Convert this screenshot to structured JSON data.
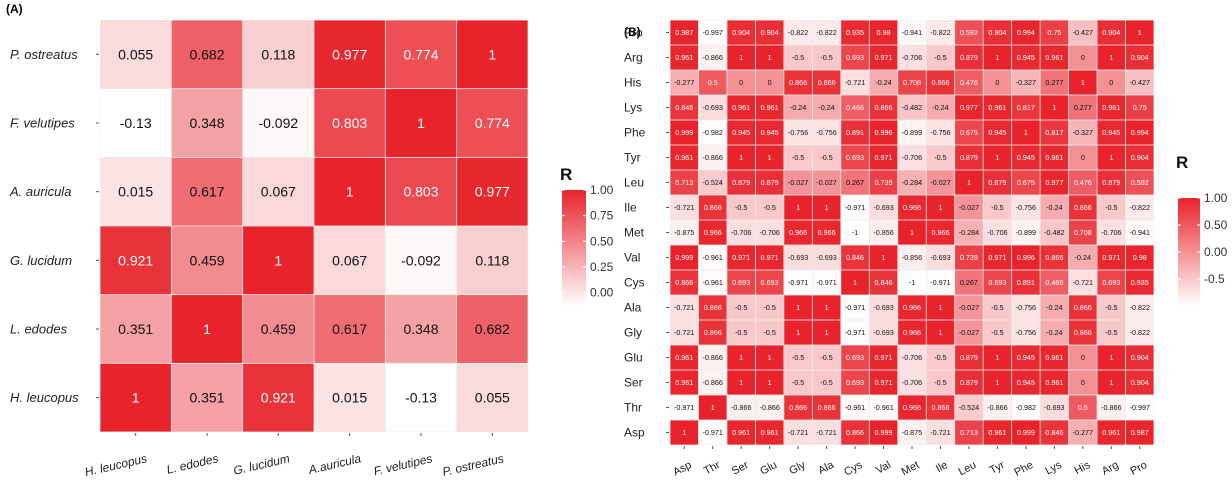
{
  "chart_data": [
    {
      "panel_label": "(A)",
      "type": "heatmap",
      "x_categories": [
        "H. leucopus",
        "L. edodes",
        "G. lucidum",
        "A.auricula",
        "F. velutipes",
        "P. ostreatus"
      ],
      "y_categories": [
        "H. leucopus",
        "L. edodes",
        "G. lucidum",
        "A. auricula",
        "F. velutipes",
        "P. ostreatus"
      ],
      "values": [
        [
          "1",
          "0.351",
          "0.921",
          "0.015",
          "-0.13",
          "0.055"
        ],
        [
          "0.351",
          "1",
          "0.459",
          "0.617",
          "0.348",
          "0.682"
        ],
        [
          "0.921",
          "0.459",
          "1",
          "0.067",
          "-0.092",
          "0.118"
        ],
        [
          "0.015",
          "0.617",
          "0.067",
          "1",
          "0.803",
          "0.977"
        ],
        [
          "-0.13",
          "0.348",
          "-0.092",
          "0.803",
          "1",
          "0.774"
        ],
        [
          "0.055",
          "0.682",
          "0.118",
          "0.977",
          "0.774",
          "1"
        ]
      ],
      "legend": {
        "title": "R",
        "ticks": [
          "1.00",
          "0.75",
          "0.50",
          "0.25",
          "0.00"
        ],
        "range": [
          -0.13,
          1
        ],
        "tick_values": [
          1,
          0.75,
          0.5,
          0.25,
          0
        ]
      },
      "grid": false,
      "legend_placement": "right",
      "colors": {
        "high": "#e8232b",
        "low": "#ffffff",
        "background": "#ebebeb"
      }
    },
    {
      "panel_label": "(B)",
      "type": "heatmap",
      "x_categories": [
        "Asp",
        "Thr",
        "Ser",
        "Glu",
        "Gly",
        "Ala",
        "Cys",
        "Val",
        "Met",
        "Ile",
        "Leu",
        "Tyr",
        "Phe",
        "Lys",
        "His",
        "Arg",
        "Pro"
      ],
      "y_categories": [
        "Asp",
        "Thr",
        "Ser",
        "Glu",
        "Gly",
        "Ala",
        "Cys",
        "Val",
        "Met",
        "Ile",
        "Leu",
        "Tyr",
        "Phe",
        "Lys",
        "His",
        "Arg",
        "Pro"
      ],
      "values": [
        [
          "1",
          "-0.971",
          "0.961",
          "0.961",
          "-0.721",
          "-0.721",
          "0.866",
          "0.999",
          "-0.875",
          "-0.721",
          "0.713",
          "0.961",
          "0.999",
          "0.846",
          "-0.277",
          "0.961",
          "0.987"
        ],
        [
          "-0.971",
          "1",
          "-0.866",
          "-0.866",
          "0.866",
          "0.866",
          "-0.961",
          "-0.961",
          "0.966",
          "0.866",
          "-0.524",
          "-0.866",
          "-0.982",
          "-0.693",
          "0.5",
          "-0.866",
          "-0.997"
        ],
        [
          "0.961",
          "-0.866",
          "1",
          "1",
          "-0.5",
          "-0.5",
          "0.693",
          "0.971",
          "-0.706",
          "-0.5",
          "0.879",
          "1",
          "0.945",
          "0.961",
          "0",
          "1",
          "0.904"
        ],
        [
          "0.961",
          "-0.866",
          "1",
          "1",
          "-0.5",
          "-0.5",
          "0.693",
          "0.971",
          "-0.706",
          "-0.5",
          "0.879",
          "1",
          "0.945",
          "0.961",
          "0",
          "1",
          "0.904"
        ],
        [
          "-0.721",
          "0.866",
          "-0.5",
          "-0.5",
          "1",
          "1",
          "-0.971",
          "-0.693",
          "0.966",
          "1",
          "-0.027",
          "-0.5",
          "-0.756",
          "-0.24",
          "0.866",
          "-0.5",
          "-0.822"
        ],
        [
          "-0.721",
          "0.866",
          "-0.5",
          "-0.5",
          "1",
          "1",
          "-0.971",
          "-0.693",
          "0.966",
          "1",
          "-0.027",
          "-0.5",
          "-0.756",
          "-0.24",
          "0.866",
          "-0.5",
          "-0.822"
        ],
        [
          "0.866",
          "-0.961",
          "0.693",
          "0.693",
          "-0.971",
          "-0.971",
          "1",
          "0.846",
          "-1",
          "-0.971",
          "0.267",
          "0.693",
          "0.891",
          "0.466",
          "-0.721",
          "0.693",
          "0.935"
        ],
        [
          "0.999",
          "-0.961",
          "0.971",
          "0.971",
          "-0.693",
          "-0.693",
          "0.846",
          "1",
          "-0.856",
          "-0.693",
          "0.739",
          "0.971",
          "0.996",
          "0.866",
          "-0.24",
          "0.971",
          "0.98"
        ],
        [
          "-0.875",
          "0.966",
          "-0.706",
          "-0.706",
          "0.966",
          "0.966",
          "-1",
          "-0.856",
          "1",
          "0.966",
          "-0.284",
          "-0.706",
          "-0.899",
          "-0.482",
          "0.708",
          "-0.706",
          "-0.941"
        ],
        [
          "-0.721",
          "0.866",
          "-0.5",
          "-0.5",
          "1",
          "1",
          "-0.971",
          "-0.693",
          "0.966",
          "1",
          "-0.027",
          "-0.5",
          "-0.756",
          "-0.24",
          "0.866",
          "-0.5",
          "-0.822"
        ],
        [
          "0.713",
          "-0.524",
          "0.879",
          "0.879",
          "-0.027",
          "-0.027",
          "0.267",
          "0.739",
          "-0.284",
          "-0.027",
          "1",
          "0.879",
          "0.675",
          "0.977",
          "0.476",
          "0.879",
          "0.592"
        ],
        [
          "0.961",
          "-0.866",
          "1",
          "1",
          "-0.5",
          "-0.5",
          "0.693",
          "0.971",
          "-0.706",
          "-0.5",
          "0.879",
          "1",
          "0.945",
          "0.961",
          "0",
          "1",
          "0.904"
        ],
        [
          "0.999",
          "-0.982",
          "0.945",
          "0.945",
          "-0.756",
          "-0.756",
          "0.891",
          "0.996",
          "-0.899",
          "-0.756",
          "0.675",
          "0.945",
          "1",
          "0.817",
          "-0.327",
          "0.945",
          "0.994"
        ],
        [
          "0.846",
          "-0.693",
          "0.961",
          "0.961",
          "-0.24",
          "-0.24",
          "0.466",
          "0.866",
          "-0.482",
          "-0.24",
          "0.977",
          "0.961",
          "0.817",
          "1",
          "0.277",
          "0.961",
          "0.75"
        ],
        [
          "-0.277",
          "0.5",
          "0",
          "0",
          "0.866",
          "0.866",
          "-0.721",
          "-0.24",
          "0.708",
          "0.866",
          "0.476",
          "0",
          "-0.327",
          "0.277",
          "1",
          "0",
          "-0.427"
        ],
        [
          "0.961",
          "-0.866",
          "1",
          "1",
          "-0.5",
          "-0.5",
          "0.693",
          "0.971",
          "-0.706",
          "-0.5",
          "0.879",
          "1",
          "0.945",
          "0.961",
          "0",
          "1",
          "0.904"
        ],
        [
          "0.987",
          "-0.997",
          "0.904",
          "0.904",
          "-0.822",
          "-0.822",
          "0.935",
          "0.98",
          "-0.941",
          "-0.822",
          "0.592",
          "0.904",
          "0.994",
          "0.75",
          "-0.427",
          "0.904",
          "1"
        ]
      ],
      "legend": {
        "title": "R",
        "ticks": [
          "1.00",
          "0.50",
          "0.00",
          "-0.5"
        ],
        "range": [
          -1,
          1
        ],
        "tick_values": [
          1,
          0.5,
          0,
          -0.5
        ]
      },
      "grid": false,
      "legend_placement": "right",
      "colors": {
        "high": "#e8232b",
        "low": "#ffffff",
        "background": "#ebebeb"
      }
    }
  ]
}
